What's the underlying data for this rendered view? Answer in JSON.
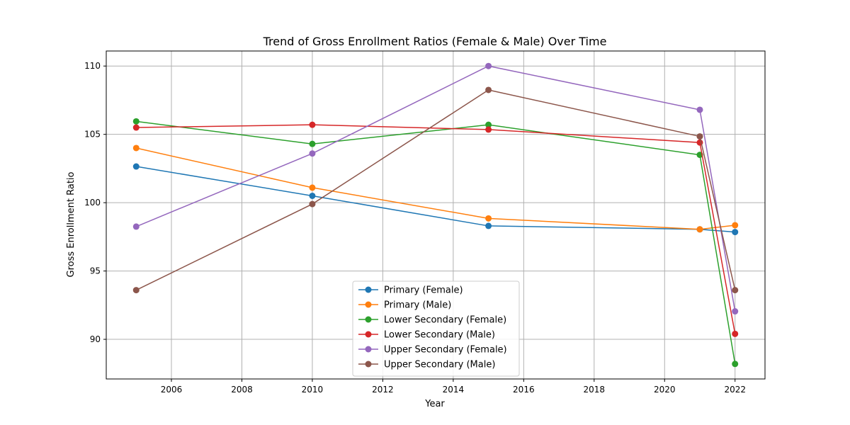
{
  "chart_data": {
    "type": "line",
    "title": "Trend of Gross Enrollment Ratios (Female & Male) Over Time",
    "xlabel": "Year",
    "ylabel": "Gross Enrollment Ratio",
    "x": [
      2005,
      2010,
      2015,
      2021,
      2022
    ],
    "xlim": [
      2004.15,
      2022.85
    ],
    "ylim": [
      87.1,
      111.1
    ],
    "xticks": [
      2006,
      2008,
      2010,
      2012,
      2014,
      2016,
      2018,
      2020,
      2022
    ],
    "yticks": [
      90,
      95,
      100,
      105,
      110
    ],
    "grid": true,
    "legend_position": "lower-center",
    "series": [
      {
        "name": "Primary (Female)",
        "color": "#1f77b4",
        "values": [
          102.65,
          100.5,
          98.3,
          98.05,
          97.85
        ]
      },
      {
        "name": "Primary (Male)",
        "color": "#ff7f0e",
        "values": [
          104.0,
          101.1,
          98.85,
          98.05,
          98.35
        ]
      },
      {
        "name": "Lower Secondary (Female)",
        "color": "#2ca02c",
        "values": [
          105.95,
          104.3,
          105.7,
          103.5,
          88.2
        ]
      },
      {
        "name": "Lower Secondary (Male)",
        "color": "#d62728",
        "values": [
          105.5,
          105.7,
          105.35,
          104.4,
          90.4
        ]
      },
      {
        "name": "Upper Secondary (Female)",
        "color": "#9467bd",
        "values": [
          98.25,
          103.6,
          110.0,
          106.8,
          92.05
        ]
      },
      {
        "name": "Upper Secondary (Male)",
        "color": "#8c564b",
        "values": [
          93.6,
          99.9,
          108.25,
          104.85,
          93.6
        ]
      }
    ]
  }
}
